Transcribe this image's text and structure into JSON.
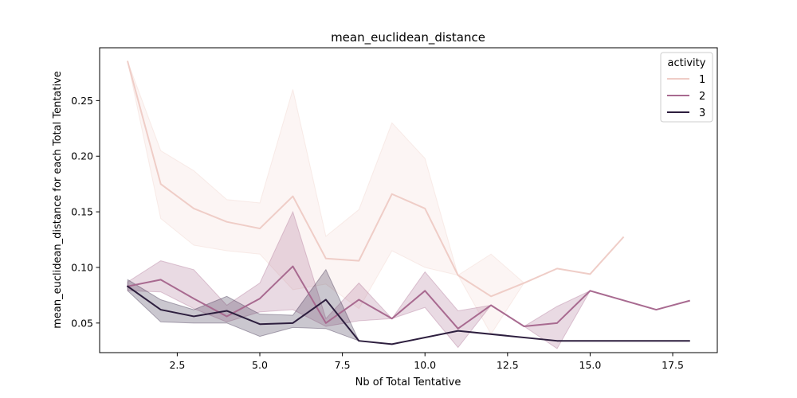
{
  "chart_data": {
    "type": "line",
    "title": "mean_euclidean_distance",
    "xlabel": "Nb of Total Tentative",
    "ylabel": "mean_euclidean_distance for each Total Tentative",
    "xlim": [
      0.15,
      18.85
    ],
    "ylim": [
      0.0234,
      0.2975
    ],
    "xticks": [
      {
        "value": 2.5,
        "label": "2.5"
      },
      {
        "value": 5.0,
        "label": "5.0"
      },
      {
        "value": 7.5,
        "label": "7.5"
      },
      {
        "value": 10.0,
        "label": "10.0"
      },
      {
        "value": 12.5,
        "label": "12.5"
      },
      {
        "value": 15.0,
        "label": "15.0"
      },
      {
        "value": 17.5,
        "label": "17.5"
      }
    ],
    "yticks": [
      {
        "value": 0.05,
        "label": "0.05"
      },
      {
        "value": 0.1,
        "label": "0.10"
      },
      {
        "value": 0.15,
        "label": "0.15"
      },
      {
        "value": 0.2,
        "label": "0.20"
      },
      {
        "value": 0.25,
        "label": "0.25"
      }
    ],
    "grid": false,
    "legend": {
      "title": "activity",
      "placement": "top-right"
    },
    "series": [
      {
        "name": "1",
        "color": "#efcdc7",
        "x": [
          1,
          2,
          3,
          4,
          5,
          6,
          7,
          8,
          9,
          10,
          11,
          12,
          13,
          14,
          15,
          16
        ],
        "y": [
          0.285,
          0.175,
          0.153,
          0.141,
          0.135,
          0.164,
          0.108,
          0.106,
          0.166,
          0.153,
          0.093,
          0.074,
          0.086,
          0.099,
          0.094,
          0.127
        ],
        "ci_low": [
          0.285,
          0.144,
          0.12,
          0.115,
          0.112,
          0.08,
          0.085,
          0.063,
          0.115,
          0.1,
          0.093,
          0.04,
          0.086,
          0.099,
          0.094,
          0.127
        ],
        "ci_high": [
          0.285,
          0.205,
          0.187,
          0.161,
          0.158,
          0.26,
          0.128,
          0.152,
          0.23,
          0.198,
          0.093,
          0.112,
          0.086,
          0.099,
          0.094,
          0.127
        ]
      },
      {
        "name": "2",
        "color": "#a86a90",
        "x": [
          1,
          2,
          3,
          4,
          5,
          6,
          7,
          8,
          9,
          10,
          11,
          12,
          13,
          14,
          15,
          17,
          18
        ],
        "y": [
          0.083,
          0.089,
          0.072,
          0.056,
          0.072,
          0.101,
          0.05,
          0.071,
          0.054,
          0.079,
          0.045,
          0.066,
          0.047,
          0.05,
          0.079,
          0.062,
          0.07
        ],
        "ci_low": [
          0.079,
          0.078,
          0.063,
          0.051,
          0.06,
          0.062,
          0.047,
          0.052,
          0.054,
          0.064,
          0.028,
          0.066,
          0.047,
          0.027,
          0.079,
          0.062,
          0.07
        ],
        "ci_high": [
          0.087,
          0.106,
          0.098,
          0.066,
          0.086,
          0.15,
          0.054,
          0.086,
          0.054,
          0.096,
          0.061,
          0.066,
          0.047,
          0.065,
          0.079,
          0.062,
          0.07
        ]
      },
      {
        "name": "3",
        "color": "#2d1e3e",
        "x": [
          1,
          2,
          3,
          4,
          5,
          6,
          7,
          8,
          9,
          11,
          14,
          15,
          18
        ],
        "y": [
          0.083,
          0.062,
          0.056,
          0.061,
          0.049,
          0.05,
          0.071,
          0.034,
          0.031,
          0.043,
          0.034,
          0.034,
          0.034
        ],
        "ci_low": [
          0.079,
          0.051,
          0.05,
          0.05,
          0.038,
          0.046,
          0.045,
          0.034,
          0.031,
          0.043,
          0.034,
          0.034,
          0.034
        ],
        "ci_high": [
          0.089,
          0.071,
          0.062,
          0.074,
          0.058,
          0.057,
          0.098,
          0.034,
          0.031,
          0.043,
          0.034,
          0.034,
          0.034
        ]
      }
    ]
  }
}
